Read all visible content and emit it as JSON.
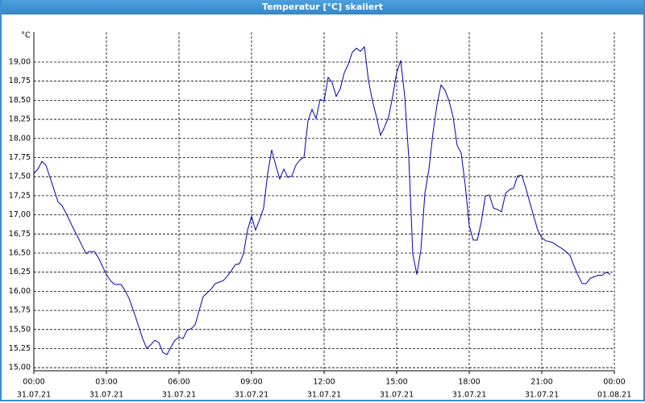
{
  "window_title": "Temperatur [°C] skaliert",
  "chart_data": {
    "type": "line",
    "y_label": "°C",
    "color": "#0000b0",
    "grid": true,
    "xlim": [
      0,
      1440
    ],
    "ylim": [
      14.96,
      19.39
    ],
    "xticks": [
      {
        "value": 0,
        "label": "00:00"
      },
      {
        "value": 180,
        "label": "03:00"
      },
      {
        "value": 360,
        "label": "06:00"
      },
      {
        "value": 540,
        "label": "09:00"
      },
      {
        "value": 720,
        "label": "12:00"
      },
      {
        "value": 900,
        "label": "15:00"
      },
      {
        "value": 1080,
        "label": "18:00"
      },
      {
        "value": 1260,
        "label": "21:00"
      },
      {
        "value": 1440,
        "label": "00:00"
      }
    ],
    "xtick_dates": [
      "31.07.21",
      "31.07.21",
      "31.07.21",
      "31.07.21",
      "31.07.21",
      "31.07.21",
      "31.07.21",
      "31.07.21",
      "01.08.21"
    ],
    "yticks": [
      {
        "value": 15,
        "label": "15,00"
      },
      {
        "value": 15.25,
        "label": "15,25"
      },
      {
        "value": 15.5,
        "label": "15,50"
      },
      {
        "value": 15.75,
        "label": "15,75"
      },
      {
        "value": 16,
        "label": "16,00"
      },
      {
        "value": 16.25,
        "label": "16,25"
      },
      {
        "value": 16.5,
        "label": "16,50"
      },
      {
        "value": 16.75,
        "label": "16,75"
      },
      {
        "value": 17,
        "label": "17,00"
      },
      {
        "value": 17.25,
        "label": "17,25"
      },
      {
        "value": 17.5,
        "label": "17,50"
      },
      {
        "value": 17.75,
        "label": "17,75"
      },
      {
        "value": 18,
        "label": "18,00"
      },
      {
        "value": 18.25,
        "label": "18,25"
      },
      {
        "value": 18.5,
        "label": "18,50"
      },
      {
        "value": 18.75,
        "label": "18,75"
      },
      {
        "value": 19,
        "label": "19,00"
      }
    ],
    "x": [
      0,
      10,
      20,
      30,
      40,
      50,
      60,
      70,
      80,
      90,
      100,
      110,
      120,
      130,
      136,
      150,
      160,
      170,
      180,
      190,
      200,
      216,
      224,
      236,
      250,
      260,
      270,
      280,
      290,
      300,
      310,
      320,
      330,
      340,
      350,
      360,
      370,
      380,
      390,
      400,
      410,
      420,
      430,
      440,
      450,
      460,
      470,
      480,
      490,
      500,
      510,
      520,
      530,
      540,
      550,
      560,
      570,
      580,
      590,
      600,
      610,
      620,
      630,
      640,
      650,
      660,
      670,
      680,
      690,
      700,
      710,
      720,
      730,
      740,
      750,
      760,
      770,
      780,
      790,
      800,
      810,
      820,
      830,
      840,
      850,
      860,
      870,
      880,
      890,
      900,
      910,
      920,
      930,
      940,
      950,
      960,
      970,
      980,
      990,
      1000,
      1010,
      1020,
      1030,
      1040,
      1050,
      1060,
      1070,
      1080,
      1090,
      1100,
      1110,
      1120,
      1130,
      1140,
      1150,
      1160,
      1170,
      1180,
      1190,
      1200,
      1210,
      1220,
      1230,
      1240,
      1250,
      1260,
      1270,
      1280,
      1290,
      1300,
      1310,
      1320,
      1330,
      1340,
      1350,
      1360,
      1370,
      1380,
      1390,
      1400,
      1410,
      1420,
      1430
    ],
    "values": [
      17.54,
      17.6,
      17.7,
      17.65,
      17.49,
      17.33,
      17.17,
      17.12,
      17.02,
      16.91,
      16.8,
      16.7,
      16.59,
      16.49,
      16.52,
      16.52,
      16.44,
      16.33,
      16.22,
      16.14,
      16.09,
      16.09,
      16.03,
      15.91,
      15.7,
      15.54,
      15.38,
      15.25,
      15.3,
      15.36,
      15.33,
      15.2,
      15.17,
      15.27,
      15.36,
      15.4,
      15.38,
      15.49,
      15.51,
      15.56,
      15.75,
      15.93,
      15.98,
      16.03,
      16.1,
      16.12,
      16.14,
      16.2,
      16.27,
      16.35,
      16.36,
      16.49,
      16.8,
      16.98,
      16.8,
      16.94,
      17.09,
      17.54,
      17.85,
      17.65,
      17.47,
      17.6,
      17.49,
      17.51,
      17.65,
      17.72,
      17.75,
      18.23,
      18.38,
      18.26,
      18.51,
      18.49,
      18.8,
      18.73,
      18.55,
      18.65,
      18.86,
      18.97,
      19.13,
      19.18,
      19.14,
      19.2,
      18.76,
      18.49,
      18.28,
      18.04,
      18.15,
      18.28,
      18.55,
      18.86,
      19.02,
      18.55,
      17.75,
      16.49,
      16.22,
      16.54,
      17.28,
      17.6,
      18.07,
      18.44,
      18.7,
      18.63,
      18.49,
      18.28,
      17.91,
      17.81,
      17.39,
      16.86,
      16.67,
      16.67,
      16.91,
      17.25,
      17.26,
      17.09,
      17.07,
      17.04,
      17.28,
      17.33,
      17.35,
      17.51,
      17.52,
      17.36,
      17.17,
      16.98,
      16.8,
      16.7,
      16.66,
      16.65,
      16.63,
      16.59,
      16.56,
      16.52,
      16.47,
      16.33,
      16.21,
      16.1,
      16.1,
      16.17,
      16.19,
      16.21,
      16.21,
      16.25,
      16.22
    ]
  }
}
